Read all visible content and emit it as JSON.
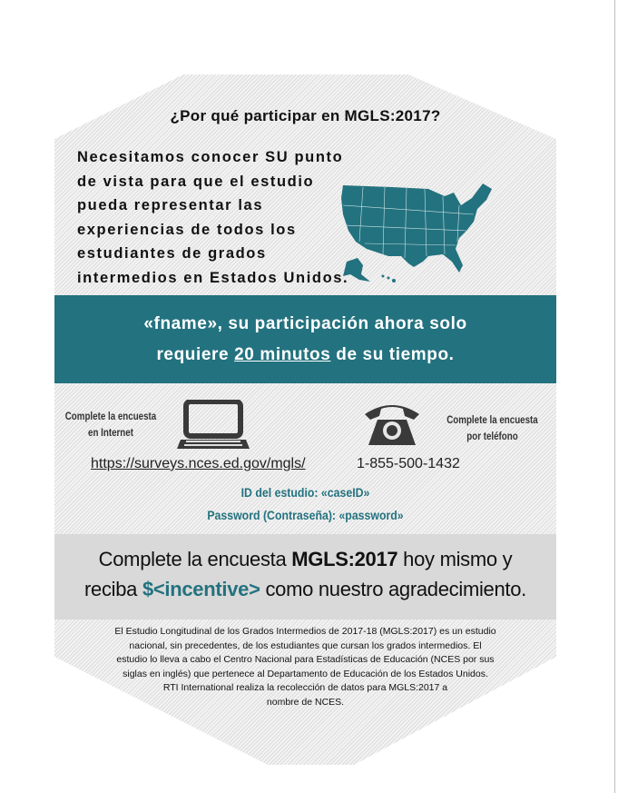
{
  "title": "¿Por qué participar en MGLS:2017?",
  "intro_lines": [
    "Necesitamos conocer SU punto",
    "de vista para que el estudio",
    "pueda representar las",
    "experiencias de todos los",
    "estudiantes de grados",
    "intermedios en Estados Unidos."
  ],
  "banner": {
    "line1": "«fname», su participación ahora solo",
    "line2_pre": "requiere ",
    "line2_emph": "20 minutos",
    "line2_post": " de su tiempo."
  },
  "online": {
    "label_line1": "Complete la encuesta",
    "label_line2": "en Internet",
    "url": "https://surveys.nces.ed.gov/mgls/",
    "icon": "laptop-icon"
  },
  "phone": {
    "label_line1": "Complete la encuesta",
    "label_line2": "por teléfono",
    "number": "1-855-500-1432",
    "icon": "telephone-icon"
  },
  "credentials": {
    "study_id": "ID del estudio: «caseID»",
    "password": "Password (Contraseña): «password»"
  },
  "cta": {
    "line1_pre": "Complete la encuesta ",
    "line1_bold": "MGLS:2017",
    "line1_post": " hoy mismo y",
    "line2_pre": "reciba ",
    "incentive": "$<incentive>",
    "line2_post": " como nuestro agradecimiento."
  },
  "footer_lines": [
    "El Estudio Longitudinal de los Grados Intermedios de 2017-18 (MGLS:2017) es un estudio",
    "nacional, sin precedentes, de los estudiantes que cursan los grados intermedios. El",
    "estudio lo lleva a cabo el Centro Nacional para Estadísticas de Educación (NCES por sus",
    "siglas en inglés) que pertenece al Departamento de Educación de los Estados Unidos.",
    "RTI International realiza la recolección de datos para MGLS:2017 a",
    "nombre de NCES."
  ],
  "colors": {
    "teal": "#23727f",
    "band_gray": "#d9d9d9",
    "icon_gray": "#3a3a3a"
  }
}
